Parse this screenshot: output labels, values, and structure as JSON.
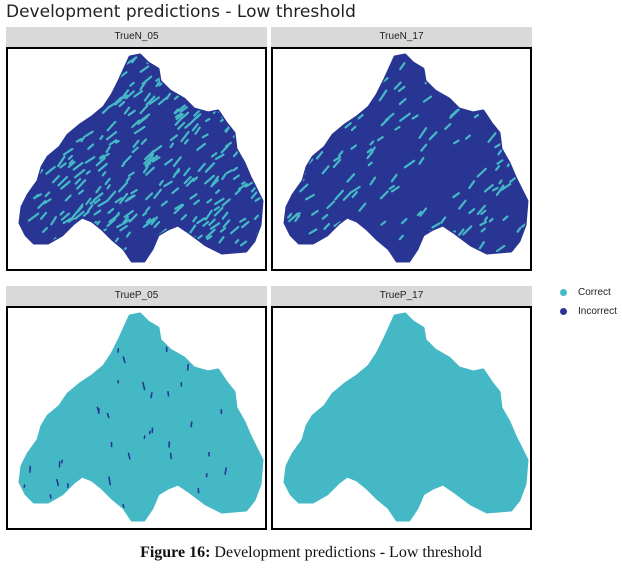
{
  "title": "Development predictions - Low threshold",
  "panels": [
    {
      "label": "TrueN_05",
      "base": "incorrect",
      "speckle": "correct",
      "density": "high"
    },
    {
      "label": "TrueN_17",
      "base": "incorrect",
      "speckle": "correct",
      "density": "medium"
    },
    {
      "label": "TrueP_05",
      "base": "correct",
      "speckle": "incorrect",
      "density": "low"
    },
    {
      "label": "TrueP_17",
      "base": "correct",
      "speckle": "incorrect",
      "density": "none"
    }
  ],
  "legend": {
    "items": [
      {
        "label": "Correct",
        "color": "#45b8c6"
      },
      {
        "label": "Incorrect",
        "color": "#283593"
      }
    ]
  },
  "caption": {
    "bold": "Figure 16:",
    "text": " Development predictions - Low threshold"
  },
  "colors": {
    "correct": "#45b8c6",
    "incorrect": "#283593"
  }
}
